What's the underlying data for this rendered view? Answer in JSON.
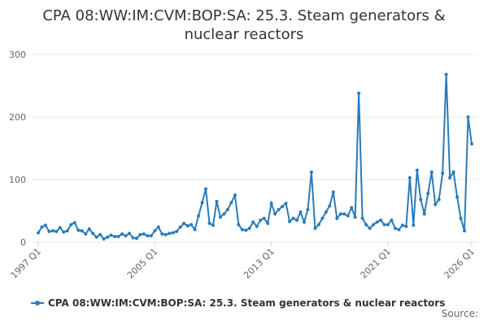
{
  "chart_data": {
    "type": "line",
    "title": "CPA 08:WW:IM:CVM:BOP:SA: 25.3. Steam generators & nuclear reactors",
    "source": "Source:",
    "categories": [
      "1997 Q1",
      null,
      null,
      null,
      null,
      null,
      null,
      null,
      null,
      null,
      null,
      null,
      null,
      null,
      null,
      null,
      null,
      null,
      null,
      null,
      null,
      null,
      null,
      null,
      null,
      null,
      null,
      null,
      null,
      null,
      null,
      null,
      "2005 Q1",
      null,
      null,
      null,
      null,
      null,
      null,
      null,
      null,
      null,
      null,
      null,
      null,
      null,
      null,
      null,
      null,
      null,
      null,
      null,
      null,
      null,
      null,
      null,
      null,
      null,
      null,
      null,
      null,
      null,
      null,
      null,
      "2013 Q1",
      null,
      null,
      null,
      null,
      null,
      null,
      null,
      null,
      null,
      null,
      null,
      null,
      null,
      null,
      null,
      null,
      null,
      null,
      null,
      null,
      null,
      null,
      null,
      null,
      null,
      null,
      null,
      null,
      null,
      null,
      null,
      "2021 Q1",
      null,
      null,
      null,
      null,
      null,
      null,
      null,
      null,
      null,
      null,
      null,
      null,
      null,
      null,
      null,
      null,
      null,
      null,
      null,
      null,
      null,
      null,
      "2026 Q1"
    ],
    "series": [
      {
        "name": "CPA 08:WW:IM:CVM:BOP:SA: 25.3. Steam generators & nuclear reactors",
        "color": "#2b7bb9",
        "values": [
          15,
          24,
          27,
          17,
          18,
          17,
          23,
          16,
          18,
          28,
          31,
          19,
          18,
          13,
          21,
          14,
          8,
          12,
          5,
          8,
          11,
          9,
          9,
          13,
          10,
          14,
          7,
          6,
          12,
          13,
          10,
          10,
          18,
          24,
          13,
          12,
          14,
          15,
          17,
          24,
          30,
          26,
          28,
          20,
          42,
          63,
          85,
          30,
          27,
          65,
          40,
          45,
          52,
          63,
          75,
          28,
          20,
          19,
          22,
          32,
          25,
          35,
          38,
          30,
          62,
          45,
          52,
          57,
          62,
          33,
          38,
          35,
          48,
          32,
          52,
          112,
          22,
          28,
          38,
          48,
          58,
          80,
          38,
          45,
          45,
          42,
          55,
          40,
          238,
          38,
          28,
          22,
          28,
          32,
          35,
          28,
          28,
          35,
          22,
          20,
          27,
          25,
          103,
          27,
          115,
          68,
          45,
          78,
          112,
          60,
          68,
          110,
          268,
          103,
          112,
          72,
          38,
          18,
          200,
          157
        ]
      }
    ],
    "ylim": [
      0,
      300
    ],
    "yticks": [
      0,
      100,
      200,
      300
    ],
    "grid": true
  }
}
